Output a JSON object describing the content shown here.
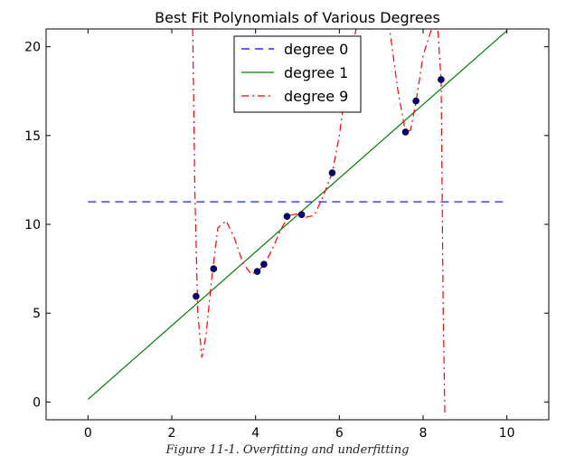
{
  "chart_data": {
    "type": "line",
    "title": "Best Fit Polynomials of Various Degrees",
    "xlabel": "",
    "ylabel": "",
    "xlim": [
      -1,
      11
    ],
    "ylim": [
      -1,
      21
    ],
    "xticks": [
      0,
      2,
      4,
      6,
      8,
      10
    ],
    "yticks": [
      0,
      5,
      10,
      15,
      20
    ],
    "grid": false,
    "legend_position": "top-center",
    "points": [
      {
        "x": 2.58,
        "y": 5.95
      },
      {
        "x": 3.0,
        "y": 7.5
      },
      {
        "x": 4.04,
        "y": 7.35
      },
      {
        "x": 4.2,
        "y": 7.75
      },
      {
        "x": 4.75,
        "y": 10.45
      },
      {
        "x": 5.1,
        "y": 10.55
      },
      {
        "x": 5.83,
        "y": 12.9
      },
      {
        "x": 7.58,
        "y": 15.2
      },
      {
        "x": 7.83,
        "y": 16.95
      },
      {
        "x": 8.43,
        "y": 18.15
      }
    ],
    "series": [
      {
        "name": "degree 0",
        "style": "dashed",
        "color": "#0000ff",
        "x": [
          0,
          10
        ],
        "y": [
          11.27,
          11.27
        ]
      },
      {
        "name": "degree 1",
        "style": "solid",
        "color": "#008000",
        "x": [
          0,
          10
        ],
        "y": [
          0.15,
          20.9
        ]
      },
      {
        "name": "degree 9",
        "style": "dashdot",
        "color": "#ff0000",
        "x": [
          2.5,
          2.55,
          2.62,
          2.72,
          2.82,
          2.95,
          3.1,
          3.3,
          3.5,
          3.7,
          3.9,
          4.04,
          4.2,
          4.4,
          4.6,
          4.8,
          5.0,
          5.2,
          5.4,
          5.6,
          5.83,
          6.0,
          6.2,
          6.4,
          7.2,
          7.4,
          7.58,
          7.7,
          7.83,
          8.0,
          8.2,
          8.35,
          8.43,
          8.48,
          8.52
        ],
        "y": [
          21,
          12.0,
          5.0,
          2.5,
          3.8,
          6.9,
          9.8,
          10.2,
          9.2,
          7.8,
          7.2,
          7.35,
          7.7,
          8.6,
          9.7,
          10.5,
          10.6,
          10.4,
          10.5,
          11.5,
          12.9,
          15.0,
          18.5,
          21,
          21,
          17.5,
          15.2,
          15.3,
          16.9,
          19.5,
          21,
          21,
          18.1,
          5.0,
          -0.8
        ]
      }
    ],
    "points_color": "#000080"
  },
  "caption": "Figure 11-1. Overfitting and underfitting"
}
